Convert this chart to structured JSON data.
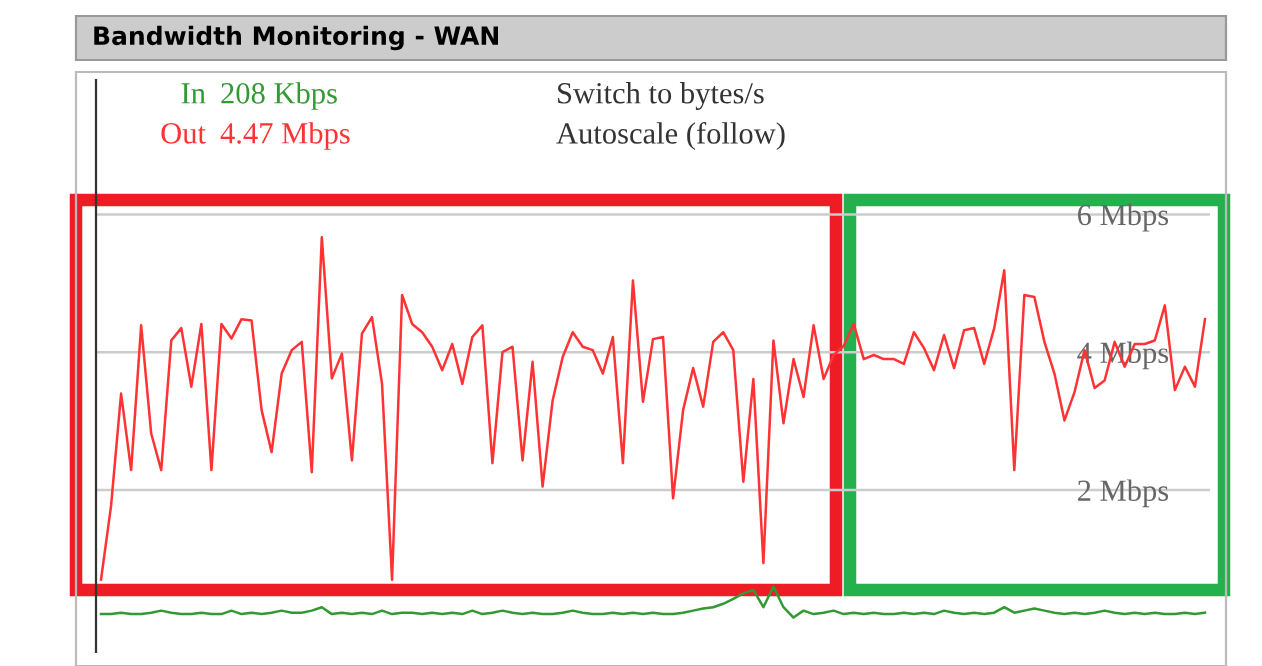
{
  "chart_data": {
    "type": "line",
    "title": "Bandwidth Monitoring - WAN",
    "categories": [
      null,
      null,
      null,
      null,
      null,
      null,
      null,
      null,
      null,
      null,
      null,
      null,
      null,
      null,
      null,
      null,
      null,
      null,
      null,
      null,
      null,
      null,
      null,
      null,
      null,
      null,
      null,
      null,
      null,
      null,
      null,
      null,
      null,
      null,
      null,
      null,
      null,
      null,
      null,
      null,
      null,
      null,
      null,
      null,
      null,
      null,
      null,
      null,
      null,
      null,
      null,
      null,
      null,
      null,
      null,
      null,
      null,
      null,
      null,
      null,
      null,
      null,
      null,
      null,
      null,
      null,
      null,
      null,
      null,
      null,
      null,
      null,
      null,
      null,
      null,
      null,
      null,
      null,
      null,
      null,
      null,
      null,
      null,
      null,
      null,
      null,
      null,
      null,
      null,
      null,
      null,
      null,
      null,
      null,
      null,
      null,
      null,
      null,
      null,
      null,
      null,
      null,
      null,
      null,
      null,
      null,
      null,
      null,
      null,
      null,
      null
    ],
    "series": [
      {
        "name": "In",
        "color": "#339933",
        "values": [
          0.2,
          0.2,
          0.22,
          0.2,
          0.2,
          0.22,
          0.25,
          0.22,
          0.2,
          0.2,
          0.22,
          0.2,
          0.2,
          0.25,
          0.2,
          0.22,
          0.2,
          0.22,
          0.25,
          0.22,
          0.22,
          0.25,
          0.3,
          0.2,
          0.22,
          0.2,
          0.22,
          0.2,
          0.25,
          0.2,
          0.22,
          0.22,
          0.2,
          0.22,
          0.2,
          0.22,
          0.2,
          0.25,
          0.2,
          0.22,
          0.25,
          0.22,
          0.2,
          0.22,
          0.2,
          0.2,
          0.22,
          0.25,
          0.22,
          0.2,
          0.2,
          0.22,
          0.2,
          0.22,
          0.2,
          0.22,
          0.2,
          0.2,
          0.22,
          0.25,
          0.28,
          0.3,
          0.35,
          0.42,
          0.5,
          0.55,
          0.3,
          0.6,
          0.3,
          0.15,
          0.25,
          0.2,
          0.22,
          0.25,
          0.2,
          0.22,
          0.2,
          0.22,
          0.2,
          0.2,
          0.22,
          0.2,
          0.22,
          0.2,
          0.25,
          0.22,
          0.2,
          0.22,
          0.2,
          0.22,
          0.3,
          0.22,
          0.25,
          0.28,
          0.25,
          0.22,
          0.2,
          0.22,
          0.2,
          0.22,
          0.25,
          0.22,
          0.2,
          0.22,
          0.2,
          0.22,
          0.2,
          0.2,
          0.22,
          0.2,
          0.22
        ]
      },
      {
        "name": "Out",
        "color": "#ff3333",
        "values": [
          0.7,
          1.77,
          3.4,
          2.29,
          4.39,
          2.82,
          2.29,
          4.17,
          4.35,
          3.5,
          4.41,
          2.29,
          4.41,
          4.2,
          4.48,
          4.46,
          3.16,
          2.55,
          3.69,
          4.03,
          4.15,
          2.26,
          5.67,
          3.62,
          3.98,
          2.43,
          4.27,
          4.51,
          3.54,
          0.7,
          4.83,
          4.41,
          4.29,
          4.08,
          3.74,
          4.12,
          3.54,
          4.22,
          4.39,
          2.39,
          4.0,
          4.08,
          2.43,
          3.86,
          2.05,
          3.3,
          3.93,
          4.29,
          4.08,
          4.03,
          3.69,
          4.22,
          2.39,
          5.04,
          3.28,
          4.19,
          4.22,
          1.88,
          3.16,
          3.77,
          3.21,
          4.15,
          4.29,
          4.03,
          2.12,
          3.61,
          0.94,
          4.17,
          2.97,
          3.9,
          3.35,
          4.39,
          3.61,
          3.96,
          4.09,
          4.41,
          3.9,
          3.96,
          3.9,
          3.9,
          3.83,
          4.29,
          4.06,
          3.74,
          4.25,
          3.77,
          4.32,
          4.35,
          3.83,
          4.35,
          5.19,
          2.29,
          4.83,
          4.8,
          4.15,
          3.69,
          3.01,
          3.42,
          4.03,
          3.48,
          3.59,
          4.15,
          3.79,
          4.12,
          4.12,
          4.17,
          4.68,
          3.45,
          3.79,
          3.5,
          4.48
        ]
      }
    ],
    "annotations": [
      "208 Kbps",
      "4.47 Mbps",
      "Switch to bytes/s",
      "Autoscale (follow)"
    ],
    "ylim": [
      -0.35,
      7.95
    ],
    "yticks": [
      {
        "value": 2,
        "label": "2 Mbps"
      },
      {
        "value": 4,
        "label": "4 Mbps"
      },
      {
        "value": 6,
        "label": "6 Mbps"
      }
    ],
    "grid": "y",
    "tick_labels": "y",
    "marker": "none",
    "line_style": "solid"
  }
}
